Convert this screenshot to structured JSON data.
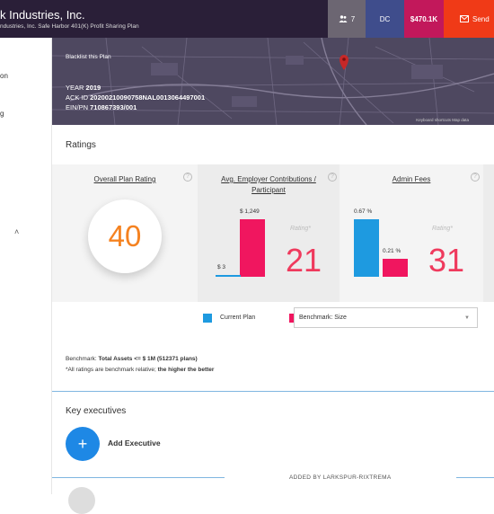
{
  "header": {
    "company": "k Industries, Inc.",
    "plan_name": "ndustries, Inc. Safe Harbor 401(K) Profit Sharing Plan",
    "users_count": "7",
    "dc_label": "DC",
    "amount": "$470.1K",
    "send_label": "Send"
  },
  "sidebar": {
    "items": [
      {
        "label": "on"
      },
      {
        "label": "g"
      }
    ],
    "chevron": "˄"
  },
  "hero": {
    "blacklist_label": "Blacklist this Plan",
    "year_label": "YEAR",
    "year_value": "2019",
    "ack_label": "ACK ID",
    "ack_value": "20200210090758NAL0013064497001",
    "ein_label": "EIN/PN",
    "ein_value": "710867393/001",
    "map_credit": "Keyboard shortcuts   Map data"
  },
  "ratings": {
    "title": "Ratings",
    "overall": {
      "title": "Overall Plan Rating",
      "score": "40"
    },
    "employer": {
      "title": "Avg. Employer Contributions / Participant",
      "current_label": "$ 3",
      "benchmark_label": "$ 1,249",
      "current_value": 3,
      "benchmark_value": 1249,
      "rating_word": "Rating*",
      "rating": "21"
    },
    "admin": {
      "title": "Admin Fees",
      "current_label": "0.67 %",
      "benchmark_label": "0.21 %",
      "current_value": 0.67,
      "benchmark_value": 0.21,
      "rating_word": "Rating*",
      "rating": "31"
    },
    "help_icon": "?"
  },
  "legend": {
    "current_label": "Current Plan",
    "benchmark_label": "Benchmark: Size",
    "select_value": "Benchmark: Size",
    "current_color": "#1e9ae0",
    "benchmark_color": "#f0165f"
  },
  "benchmark": {
    "prefix": "Benchmark:",
    "value": "Total Assets <= $ 1M (512371 plans)",
    "note_prefix": "*All ratings are benchmark relative;",
    "note_bold": "the higher the better"
  },
  "executives": {
    "title": "Key executives",
    "add_label": "Add Executive",
    "added_by": "ADDED BY LARKSPUR-RIXTREMA"
  }
}
